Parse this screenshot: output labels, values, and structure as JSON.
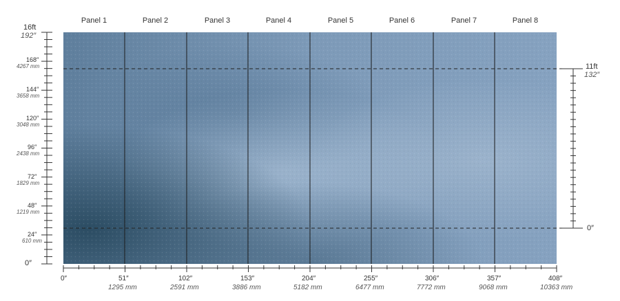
{
  "panels": [
    "Panel 1",
    "Panel 2",
    "Panel 3",
    "Panel 4",
    "Panel 5",
    "Panel 6",
    "Panel 7",
    "Panel 8"
  ],
  "left_ruler": {
    "top_ft": "16ft",
    "top_in": "192″",
    "marks": [
      {
        "in": "168″",
        "mm": "4267 mm"
      },
      {
        "in": "144″",
        "mm": "3658 mm"
      },
      {
        "in": "120″",
        "mm": "3048 mm"
      },
      {
        "in": "96″",
        "mm": "2438 mm"
      },
      {
        "in": "72″",
        "mm": "1829 mm"
      },
      {
        "in": "48″",
        "mm": "1219 mm"
      },
      {
        "in": "24″",
        "mm": "610 mm"
      }
    ],
    "zero": "0″"
  },
  "right_ruler": {
    "top_ft": "11ft",
    "top_in": "132″",
    "zero": "0″"
  },
  "bottom_ruler": {
    "marks": [
      {
        "in": "0″",
        "mm": ""
      },
      {
        "in": "51″",
        "mm": "1295 mm"
      },
      {
        "in": "102″",
        "mm": "2591 mm"
      },
      {
        "in": "153″",
        "mm": "3886 mm"
      },
      {
        "in": "204″",
        "mm": "5182 mm"
      },
      {
        "in": "255″",
        "mm": "6477 mm"
      },
      {
        "in": "306″",
        "mm": "7772 mm"
      },
      {
        "in": "357″",
        "mm": "9068 mm"
      },
      {
        "in": "408″",
        "mm": "10363 mm"
      }
    ]
  },
  "colors": {
    "wall_base": "#6f8fb0",
    "wall_dark": "#2f4f66",
    "wall_light": "#a9bfd6",
    "panel_divider": "#1a1a1a",
    "dashed_line": "#222222"
  }
}
